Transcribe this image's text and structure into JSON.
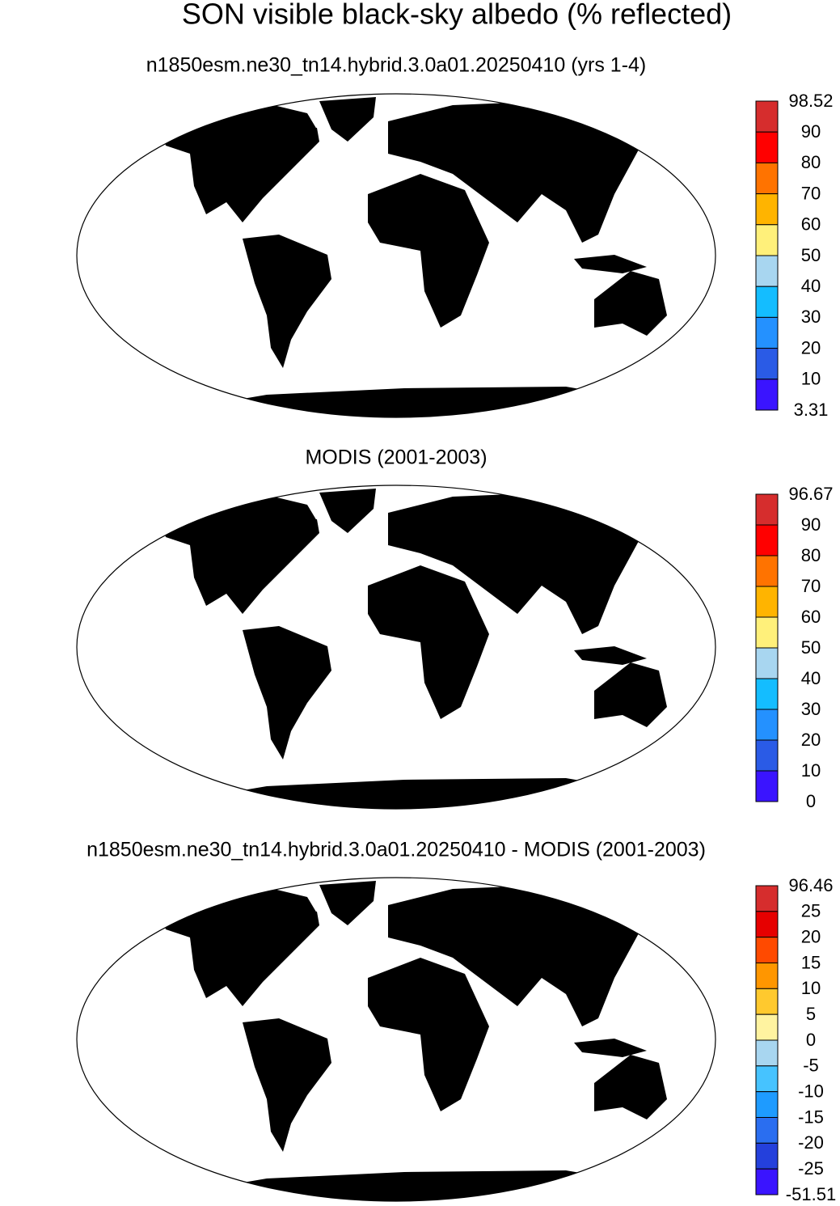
{
  "title": "SON visible black-sky albedo (% reflected)",
  "panels": [
    {
      "subtitle": "n1850esm.ne30_tn14.hybrid.3.0a01.20250410 (yrs 1-4)",
      "colorbar": {
        "labels": [
          98.52,
          90,
          80,
          70,
          60,
          50,
          40,
          30,
          20,
          10,
          3.31
        ],
        "colors": [
          "#d62d2d",
          "#ff0000",
          "#ff7300",
          "#ffb400",
          "#fff07a",
          "#a8d6f0",
          "#14bdff",
          "#2491ff",
          "#2a5be6",
          "#3a14ff"
        ]
      }
    },
    {
      "subtitle": "MODIS (2001-2003)",
      "colorbar": {
        "labels": [
          96.67,
          90,
          80,
          70,
          60,
          50,
          40,
          30,
          20,
          10,
          0
        ],
        "colors": [
          "#d62d2d",
          "#ff0000",
          "#ff7300",
          "#ffb400",
          "#fff07a",
          "#a8d6f0",
          "#14bdff",
          "#2491ff",
          "#2a5be6",
          "#3a14ff"
        ]
      }
    },
    {
      "subtitle": "n1850esm.ne30_tn14.hybrid.3.0a01.20250410 - MODIS (2001-2003)",
      "colorbar": {
        "labels": [
          96.46,
          25,
          20,
          15,
          10,
          5,
          0,
          -5,
          -10,
          -15,
          -20,
          -25,
          -51.51
        ],
        "colors": [
          "#d62d2d",
          "#e60000",
          "#ff4a00",
          "#ff9600",
          "#ffc92e",
          "#fff3a0",
          "#a8d6f0",
          "#46c3ff",
          "#1e9bff",
          "#2a6ef0",
          "#2440dc",
          "#3a14ff"
        ]
      }
    }
  ]
}
